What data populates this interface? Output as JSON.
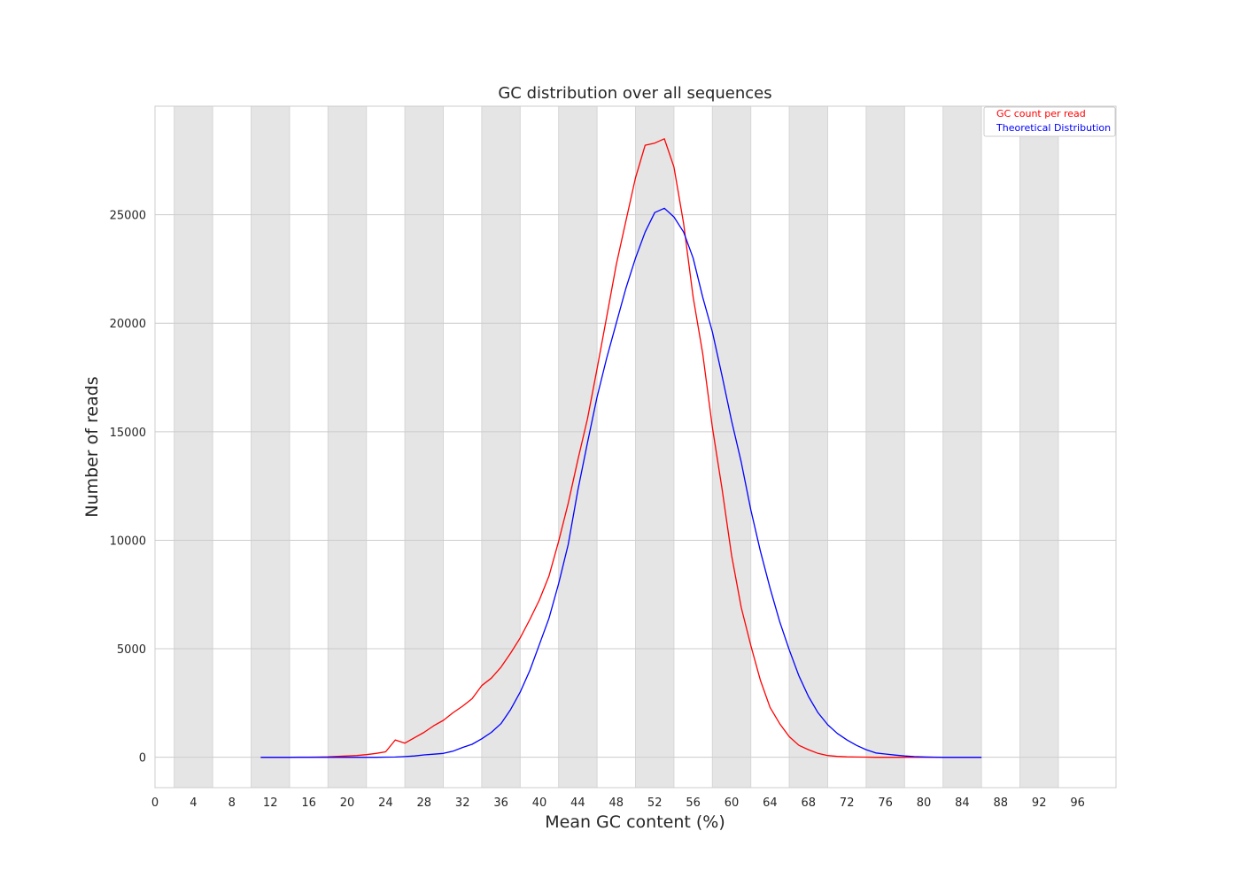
{
  "chart_data": {
    "type": "line",
    "title": "GC distribution over all sequences",
    "xlabel": "Mean GC content (%)",
    "ylabel": "Number of reads",
    "xlim": [
      0,
      100
    ],
    "ylim": [
      -1400,
      30000
    ],
    "xticks": [
      0,
      4,
      8,
      12,
      16,
      20,
      24,
      28,
      32,
      36,
      40,
      44,
      48,
      52,
      56,
      60,
      64,
      68,
      72,
      76,
      80,
      84,
      88,
      92,
      96
    ],
    "yticks": [
      0,
      5000,
      10000,
      15000,
      20000,
      25000
    ],
    "grid": true,
    "legend": "top-right",
    "shaded_bands": [
      [
        2,
        6
      ],
      [
        10,
        14
      ],
      [
        18,
        22
      ],
      [
        26,
        30
      ],
      [
        34,
        38
      ],
      [
        42,
        46
      ],
      [
        50,
        54
      ],
      [
        58,
        62
      ],
      [
        66,
        70
      ],
      [
        74,
        78
      ],
      [
        82,
        86
      ],
      [
        90,
        94
      ]
    ],
    "series": [
      {
        "name": "GC count per read",
        "color": "#ff0000",
        "x": [
          11,
          12,
          13,
          14,
          15,
          16,
          17,
          18,
          19,
          20,
          21,
          22,
          23,
          24,
          25,
          26,
          27,
          28,
          29,
          30,
          31,
          32,
          33,
          34,
          35,
          36,
          37,
          38,
          39,
          40,
          41,
          42,
          43,
          44,
          45,
          46,
          47,
          48,
          49,
          50,
          51,
          52,
          53,
          54,
          55,
          56,
          57,
          58,
          59,
          60,
          61,
          62,
          63,
          64,
          65,
          66,
          67,
          68,
          69,
          70,
          71,
          72,
          73,
          74,
          75,
          76,
          77,
          78,
          79,
          80,
          81,
          82,
          83,
          84,
          85,
          86
        ],
        "y": [
          0,
          0,
          0,
          0,
          5,
          5,
          10,
          20,
          40,
          60,
          80,
          120,
          180,
          250,
          800,
          650,
          900,
          1150,
          1450,
          1700,
          2050,
          2350,
          2700,
          3300,
          3650,
          4150,
          4800,
          5500,
          6350,
          7250,
          8350,
          9950,
          11700,
          13700,
          15600,
          17900,
          20300,
          22700,
          24700,
          26700,
          28200,
          28300,
          28500,
          27200,
          24600,
          21200,
          18600,
          15200,
          12400,
          9300,
          6900,
          5150,
          3550,
          2300,
          1550,
          950,
          550,
          350,
          180,
          80,
          40,
          20,
          10,
          5,
          0,
          0,
          0,
          0,
          0,
          0,
          0,
          0,
          0,
          0,
          0,
          0
        ]
      },
      {
        "name": "Theoretical Distribution",
        "color": "#0000ff",
        "x": [
          11,
          12,
          13,
          14,
          15,
          16,
          17,
          18,
          19,
          20,
          21,
          22,
          23,
          24,
          25,
          26,
          27,
          28,
          29,
          30,
          31,
          32,
          33,
          34,
          35,
          36,
          37,
          38,
          39,
          40,
          41,
          42,
          43,
          44,
          45,
          46,
          47,
          48,
          49,
          50,
          51,
          52,
          53,
          54,
          55,
          56,
          57,
          58,
          59,
          60,
          61,
          62,
          63,
          64,
          65,
          66,
          67,
          68,
          69,
          70,
          71,
          72,
          73,
          74,
          75,
          76,
          77,
          78,
          79,
          80,
          81,
          82,
          83,
          84,
          85,
          86
        ],
        "y": [
          0,
          0,
          0,
          0,
          0,
          0,
          0,
          0,
          0,
          0,
          0,
          0,
          0,
          5,
          10,
          30,
          60,
          110,
          140,
          180,
          280,
          450,
          600,
          850,
          1150,
          1550,
          2200,
          3000,
          4000,
          5200,
          6400,
          8000,
          9800,
          12300,
          14500,
          16600,
          18400,
          20000,
          21600,
          23000,
          24200,
          25100,
          25300,
          24900,
          24200,
          23000,
          21200,
          19600,
          17600,
          15500,
          13600,
          11400,
          9500,
          7800,
          6250,
          4950,
          3750,
          2800,
          2050,
          1500,
          1100,
          800,
          550,
          350,
          200,
          150,
          100,
          60,
          30,
          15,
          5,
          0,
          0,
          0,
          0,
          0
        ]
      }
    ]
  }
}
